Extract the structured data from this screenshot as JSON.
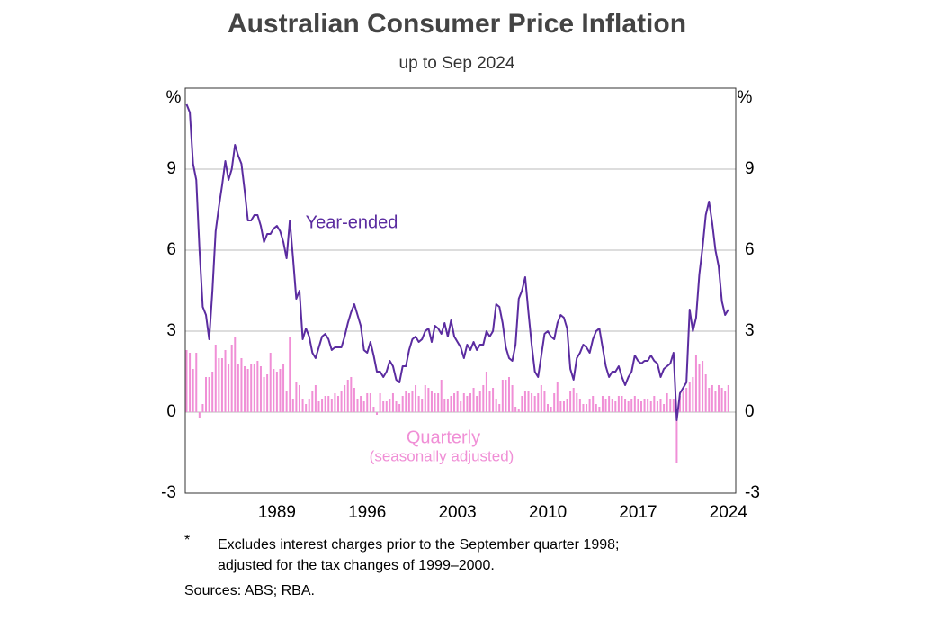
{
  "chart_data": {
    "type": "combo",
    "title": "Australian Consumer Price Inflation",
    "subtitle": "up to Sep 2024",
    "ylabel": "%",
    "y2label": "%",
    "ylim": [
      -3,
      12
    ],
    "yticks": [
      -3,
      0,
      3,
      6,
      9
    ],
    "grid": true,
    "categories": [
      null,
      null,
      null,
      null,
      null,
      null,
      null,
      null,
      null,
      null,
      null,
      null,
      null,
      null,
      null,
      null,
      null,
      null,
      null,
      null,
      null,
      null,
      null,
      null,
      null,
      null,
      null,
      null,
      "1989",
      null,
      null,
      null,
      null,
      null,
      null,
      null,
      null,
      null,
      null,
      null,
      null,
      null,
      null,
      null,
      null,
      null,
      null,
      null,
      null,
      null,
      null,
      null,
      null,
      null,
      null,
      null,
      "1996",
      null,
      null,
      null,
      null,
      null,
      null,
      null,
      null,
      null,
      null,
      null,
      null,
      null,
      null,
      null,
      null,
      null,
      null,
      null,
      null,
      null,
      null,
      null,
      null,
      null,
      null,
      null,
      "2003",
      null,
      null,
      null,
      null,
      null,
      null,
      null,
      null,
      null,
      null,
      null,
      null,
      null,
      null,
      null,
      null,
      null,
      null,
      null,
      null,
      null,
      null,
      null,
      null,
      null,
      null,
      null,
      "2010",
      null,
      null,
      null,
      null,
      null,
      null,
      null,
      null,
      null,
      null,
      null,
      null,
      null,
      null,
      null,
      null,
      null,
      null,
      null,
      null,
      null,
      null,
      null,
      null,
      null,
      null,
      null,
      "2017",
      null,
      null,
      null,
      null,
      null,
      null,
      null,
      null,
      null,
      null,
      null,
      null,
      null,
      null,
      null,
      null,
      null,
      null,
      null,
      null,
      null,
      null,
      null,
      null,
      null,
      null,
      null,
      "2024"
    ],
    "series": [
      {
        "name": "Quarterly",
        "type": "bar",
        "color": "#f08fd6",
        "values": [
          2.3,
          2.2,
          1.6,
          2.2,
          -0.2,
          0.3,
          1.3,
          1.3,
          1.5,
          2.5,
          2.0,
          2.0,
          2.3,
          1.8,
          2.5,
          2.8,
          1.8,
          2.0,
          1.7,
          1.6,
          1.8,
          1.8,
          1.9,
          1.7,
          1.3,
          1.4,
          2.2,
          1.6,
          1.5,
          1.6,
          1.8,
          0.8,
          2.8,
          0.5,
          1.1,
          1.0,
          0.5,
          0.3,
          0.5,
          0.8,
          1.0,
          0.4,
          0.5,
          0.6,
          0.6,
          0.5,
          0.7,
          0.6,
          0.8,
          1.0,
          1.2,
          1.3,
          0.9,
          0.5,
          0.6,
          0.4,
          0.7,
          0.7,
          0.2,
          -0.1,
          0.7,
          0.4,
          0.4,
          0.5,
          0.7,
          0.4,
          0.3,
          0.6,
          0.8,
          0.7,
          0.8,
          1.0,
          0.6,
          0.5,
          1.0,
          0.9,
          0.8,
          0.7,
          0.7,
          1.2,
          0.5,
          0.5,
          0.6,
          0.7,
          0.8,
          0.4,
          0.7,
          0.6,
          0.7,
          0.9,
          0.6,
          0.8,
          1.0,
          1.5,
          0.8,
          0.9,
          0.5,
          0.3,
          1.2,
          1.2,
          1.3,
          1.0,
          0.2,
          0.1,
          0.6,
          0.8,
          0.8,
          0.7,
          0.6,
          0.7,
          1.0,
          0.8,
          0.3,
          0.2,
          0.7,
          1.1,
          0.4,
          0.4,
          0.5,
          0.8,
          0.9,
          0.7,
          0.5,
          0.3,
          0.3,
          0.5,
          0.6,
          0.3,
          0.2,
          0.6,
          0.5,
          0.6,
          0.5,
          0.4,
          0.6,
          0.6,
          0.5,
          0.4,
          0.5,
          0.6,
          0.5,
          0.4,
          0.5,
          0.5,
          0.4,
          0.6,
          0.4,
          0.5,
          0.3,
          0.7,
          0.5,
          0.5,
          -1.9,
          0.6,
          0.8,
          0.9,
          1.1,
          1.3,
          2.1,
          1.8,
          1.9,
          1.4,
          0.9,
          1.0,
          0.8,
          1.0,
          0.9,
          0.8,
          1.0
        ]
      },
      {
        "name": "Year-ended",
        "type": "line",
        "color": "#5b2ca0",
        "values": [
          11.4,
          11.1,
          9.2,
          8.6,
          6.0,
          3.9,
          3.6,
          2.7,
          4.5,
          6.7,
          7.6,
          8.4,
          9.3,
          8.6,
          9.0,
          9.9,
          9.5,
          9.2,
          8.2,
          7.1,
          7.1,
          7.3,
          7.3,
          6.9,
          6.3,
          6.6,
          6.6,
          6.8,
          6.9,
          6.7,
          6.3,
          5.7,
          7.1,
          5.7,
          4.2,
          4.5,
          2.7,
          3.1,
          2.8,
          2.2,
          2.0,
          2.4,
          2.8,
          2.9,
          2.7,
          2.3,
          2.4,
          2.4,
          2.4,
          2.8,
          3.3,
          3.7,
          4.0,
          3.6,
          3.2,
          2.3,
          2.2,
          2.6,
          2.1,
          1.5,
          1.5,
          1.3,
          1.5,
          1.9,
          1.7,
          1.2,
          1.1,
          1.7,
          1.7,
          2.3,
          2.7,
          2.8,
          2.6,
          2.7,
          3.0,
          3.1,
          2.6,
          3.2,
          3.1,
          2.9,
          3.3,
          2.8,
          3.4,
          2.8,
          2.6,
          2.4,
          2.0,
          2.5,
          2.3,
          2.6,
          2.3,
          2.5,
          2.5,
          3.0,
          2.8,
          3.0,
          4.0,
          3.9,
          3.3,
          2.4,
          2.0,
          1.9,
          2.5,
          4.2,
          4.5,
          5.0,
          3.7,
          2.5,
          1.5,
          1.3,
          2.1,
          2.9,
          3.0,
          2.8,
          2.7,
          3.3,
          3.6,
          3.5,
          3.1,
          1.6,
          1.2,
          2.0,
          2.2,
          2.5,
          2.4,
          2.2,
          2.7,
          3.0,
          3.1,
          2.4,
          1.7,
          1.3,
          1.5,
          1.5,
          1.7,
          1.3,
          1.0,
          1.3,
          1.5,
          2.1,
          1.9,
          1.8,
          1.9,
          1.9,
          2.1,
          1.9,
          1.8,
          1.3,
          1.6,
          1.7,
          1.8,
          2.2,
          -0.3,
          0.7,
          0.9,
          1.1,
          3.8,
          3.0,
          3.5,
          5.1,
          6.1,
          7.3,
          7.8,
          7.0,
          6.0,
          5.4,
          4.1,
          3.6,
          3.8
        ]
      }
    ],
    "annotations": [
      "Year-ended",
      "Quarterly",
      "(seasonally adjusted)"
    ],
    "footnote_marker": "*",
    "footnotes": [
      "Excludes interest charges prior to the September quarter 1998;",
      "adjusted for the tax changes of 1999–2000."
    ],
    "source": "Sources: ABS; RBA."
  }
}
